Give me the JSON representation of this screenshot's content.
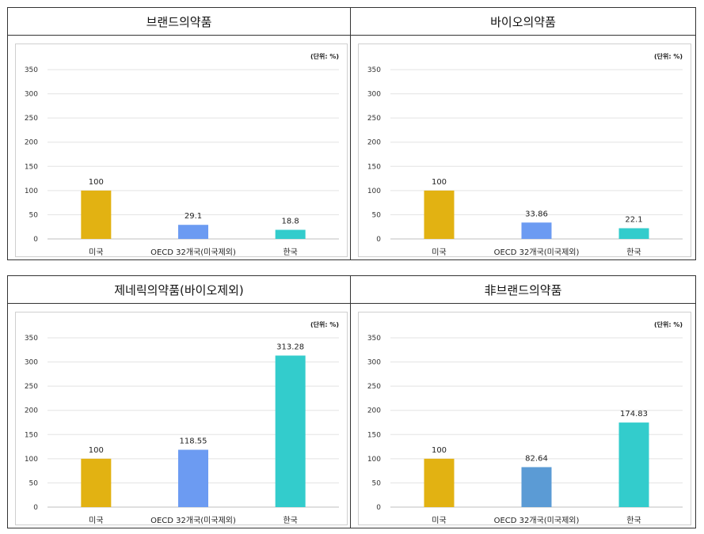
{
  "panels": [
    {
      "title": "브랜드의약품",
      "unit": "(단위: %)",
      "chart_data": {
        "type": "bar",
        "categories": [
          "미국",
          "OECD 32개국(미국제외)",
          "한국"
        ],
        "values": [
          100,
          29.1,
          18.8
        ],
        "value_labels": [
          "100",
          "29.1",
          "18.8"
        ],
        "bar_colors": [
          "#E2B212",
          "#6C9BF2",
          "#33CCCC"
        ],
        "yticks": [
          "0",
          "50",
          "100",
          "150",
          "200",
          "250",
          "300",
          "350"
        ],
        "ylim": [
          0,
          350
        ],
        "grid": true
      }
    },
    {
      "title": "바이오의약품",
      "unit": "(단위: %)",
      "chart_data": {
        "type": "bar",
        "categories": [
          "미국",
          "OECD 32개국(미국제외)",
          "한국"
        ],
        "values": [
          100,
          33.86,
          22.1
        ],
        "value_labels": [
          "100",
          "33.86",
          "22.1"
        ],
        "bar_colors": [
          "#E2B212",
          "#6C9BF2",
          "#33CCCC"
        ],
        "yticks": [
          "0",
          "50",
          "100",
          "150",
          "200",
          "250",
          "300",
          "350"
        ],
        "ylim": [
          0,
          350
        ],
        "grid": true
      }
    },
    {
      "title": "제네릭의약품(바이오제외)",
      "unit": "(단위: %)",
      "chart_data": {
        "type": "bar",
        "categories": [
          "미국",
          "OECD 32개국(미국제외)",
          "한국"
        ],
        "values": [
          100,
          118.55,
          313.28
        ],
        "value_labels": [
          "100",
          "118.55",
          "313.28"
        ],
        "bar_colors": [
          "#E2B212",
          "#6C9BF2",
          "#33CCCC"
        ],
        "yticks": [
          "0",
          "50",
          "100",
          "150",
          "200",
          "250",
          "300",
          "350"
        ],
        "ylim": [
          0,
          350
        ],
        "grid": true
      }
    },
    {
      "title": "非브랜드의약품",
      "unit": "(단위: %)",
      "chart_data": {
        "type": "bar",
        "categories": [
          "미국",
          "OECD 32개국(미국제외)",
          "한국"
        ],
        "values": [
          100,
          82.64,
          174.83
        ],
        "value_labels": [
          "100",
          "82.64",
          "174.83"
        ],
        "bar_colors": [
          "#E2B212",
          "#5B9BD5",
          "#33CCCC"
        ],
        "yticks": [
          "0",
          "50",
          "100",
          "150",
          "200",
          "250",
          "300",
          "350"
        ],
        "ylim": [
          0,
          350
        ],
        "grid": true
      }
    }
  ]
}
